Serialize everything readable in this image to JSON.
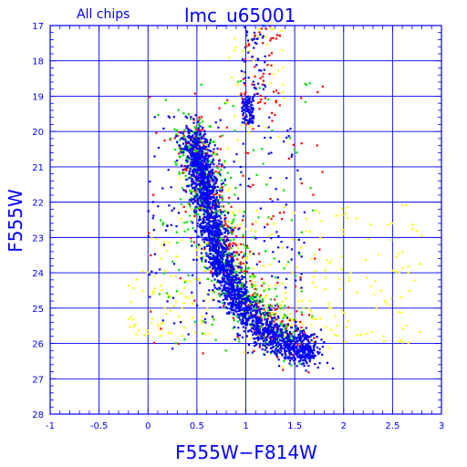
{
  "chart_data": {
    "type": "scatter",
    "title_left": "All chips",
    "title_right": "lmc_u65001",
    "xlabel": "F555W−F814W",
    "ylabel": "F555W",
    "xlim": [
      -1,
      3
    ],
    "ylim": [
      28,
      17
    ],
    "y_inverted": true,
    "grid": true,
    "x_ticks_major": [
      -1,
      -0.5,
      0,
      0.5,
      1,
      1.5,
      2,
      2.5,
      3
    ],
    "x_tick_labels": [
      "-1",
      "-0.5",
      "0",
      "0.5",
      "1",
      "1.5",
      "2",
      "2.5",
      "3"
    ],
    "x_minor_step": 0.1,
    "y_ticks_major": [
      17,
      18,
      19,
      20,
      21,
      22,
      23,
      24,
      25,
      26,
      27,
      28
    ],
    "y_tick_labels": [
      "17",
      "18",
      "19",
      "20",
      "21",
      "22",
      "23",
      "24",
      "25",
      "26",
      "27",
      "28"
    ],
    "y_minor_step": 0.2,
    "marker_colors": [
      "#0000ff",
      "#00e000",
      "#ff0000",
      "#ffff00"
    ],
    "series": [
      {
        "color": "#0000ff",
        "count": 2600,
        "clusters": [
          {
            "shape": "ridge",
            "points": [
              [
                0.45,
                20.2
              ],
              [
                0.55,
                21.3
              ],
              [
                0.62,
                22.3
              ],
              [
                0.7,
                23.3
              ],
              [
                0.8,
                24.2
              ],
              [
                0.95,
                25.0
              ],
              [
                1.2,
                25.7
              ],
              [
                1.5,
                26.1
              ],
              [
                1.7,
                26.2
              ]
            ],
            "width": 0.07,
            "mag_width": 0.25,
            "weight": 0.78
          },
          {
            "shape": "ridge",
            "points": [
              [
                0.45,
                20.0
              ],
              [
                0.55,
                20.8
              ],
              [
                0.62,
                21.6
              ]
            ],
            "width": 0.07,
            "mag_width": 0.3,
            "weight": 0.08
          },
          {
            "shape": "box",
            "x": [
              0.96,
              1.08
            ],
            "y": [
              19.0,
              19.8
            ],
            "weight": 0.04
          },
          {
            "shape": "box",
            "x": [
              0.95,
              1.2
            ],
            "y": [
              17.0,
              19.0
            ],
            "weight": 0.02
          },
          {
            "shape": "box",
            "x": [
              0.0,
              1.6
            ],
            "y": [
              19.5,
              26.3
            ],
            "weight": 0.08
          }
        ]
      },
      {
        "color": "#00e000",
        "count": 700,
        "clusters": [
          {
            "shape": "ridge",
            "points": [
              [
                0.42,
                20.0
              ],
              [
                0.5,
                20.9
              ],
              [
                0.58,
                21.8
              ],
              [
                0.65,
                22.6
              ],
              [
                0.78,
                23.6
              ],
              [
                0.95,
                24.6
              ],
              [
                1.2,
                25.4
              ],
              [
                1.55,
                26.0
              ]
            ],
            "width": 0.1,
            "mag_width": 0.35,
            "weight": 0.85
          },
          {
            "shape": "box",
            "x": [
              0.1,
              1.7
            ],
            "y": [
              18.5,
              26.2
            ],
            "weight": 0.15
          }
        ]
      },
      {
        "color": "#ff0000",
        "count": 550,
        "clusters": [
          {
            "shape": "ridge",
            "points": [
              [
                0.45,
                20.0
              ],
              [
                0.52,
                20.9
              ],
              [
                0.6,
                21.8
              ],
              [
                0.7,
                22.8
              ],
              [
                0.85,
                23.8
              ],
              [
                1.05,
                24.8
              ],
              [
                1.3,
                25.6
              ],
              [
                1.6,
                26.0
              ]
            ],
            "width": 0.1,
            "mag_width": 0.35,
            "weight": 0.75
          },
          {
            "shape": "box",
            "x": [
              0.95,
              1.35
            ],
            "y": [
              17.0,
              19.8
            ],
            "weight": 0.1
          },
          {
            "shape": "box",
            "x": [
              0.0,
              1.8
            ],
            "y": [
              18.5,
              26.3
            ],
            "weight": 0.15
          }
        ]
      },
      {
        "color": "#ffff00",
        "count": 450,
        "clusters": [
          {
            "shape": "ridge",
            "points": [
              [
                0.5,
                20.5
              ],
              [
                0.65,
                22.0
              ],
              [
                0.85,
                23.5
              ],
              [
                1.1,
                24.8
              ],
              [
                1.5,
                25.8
              ]
            ],
            "width": 0.15,
            "mag_width": 0.45,
            "weight": 0.35
          },
          {
            "shape": "box",
            "x": [
              -0.2,
              0.7
            ],
            "y": [
              23.0,
              25.8
            ],
            "weight": 0.2
          },
          {
            "shape": "box",
            "x": [
              1.0,
              2.8
            ],
            "y": [
              22.0,
              26.0
            ],
            "weight": 0.35
          },
          {
            "shape": "box",
            "x": [
              0.8,
              1.4
            ],
            "y": [
              17.0,
              20.5
            ],
            "weight": 0.1
          }
        ]
      }
    ]
  }
}
